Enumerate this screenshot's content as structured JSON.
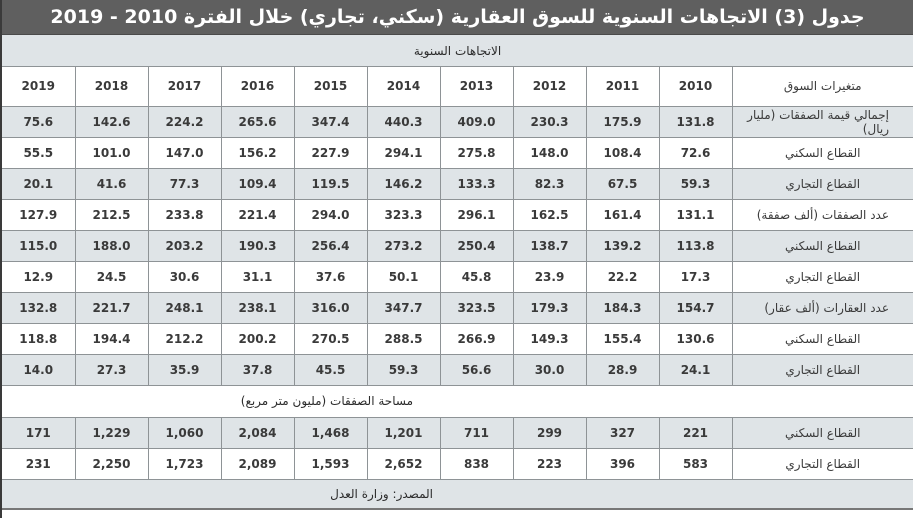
{
  "title": "جدول (3) الاتجاهات السنوية للسوق العقارية (سكني، تجاري) خلال الفترة 2010 - 2019",
  "subtitle": "الاتجاهات السنوية",
  "header": {
    "label": "متغيرات السوق",
    "years": [
      "2019",
      "2018",
      "2017",
      "2016",
      "2015",
      "2014",
      "2013",
      "2012",
      "2011",
      "2010"
    ]
  },
  "rows": [
    {
      "label": "إجمالي قيمة الصفقات (مليار ريال)",
      "values": [
        "75.6",
        "142.6",
        "224.2",
        "265.6",
        "347.4",
        "440.3",
        "409.0",
        "230.3",
        "175.9",
        "131.8"
      ]
    },
    {
      "label": "القطاع السكني",
      "values": [
        "55.5",
        "101.0",
        "147.0",
        "156.2",
        "227.9",
        "294.1",
        "275.8",
        "148.0",
        "108.4",
        "72.6"
      ]
    },
    {
      "label": "القطاع التجاري",
      "values": [
        "20.1",
        "41.6",
        "77.3",
        "109.4",
        "119.5",
        "146.2",
        "133.3",
        "82.3",
        "67.5",
        "59.3"
      ]
    },
    {
      "label": "عدد الصفقات (ألف صفقة)",
      "values": [
        "127.9",
        "212.5",
        "233.8",
        "221.4",
        "294.0",
        "323.3",
        "296.1",
        "162.5",
        "161.4",
        "131.1"
      ]
    },
    {
      "label": "القطاع السكني",
      "values": [
        "115.0",
        "188.0",
        "203.2",
        "190.3",
        "256.4",
        "273.2",
        "250.4",
        "138.7",
        "139.2",
        "113.8"
      ]
    },
    {
      "label": "القطاع التجاري",
      "values": [
        "12.9",
        "24.5",
        "30.6",
        "31.1",
        "37.6",
        "50.1",
        "45.8",
        "23.9",
        "22.2",
        "17.3"
      ]
    },
    {
      "label": "عدد العقارات (ألف عقار)",
      "values": [
        "132.8",
        "221.7",
        "248.1",
        "238.1",
        "316.0",
        "347.7",
        "323.5",
        "179.3",
        "184.3",
        "154.7"
      ]
    },
    {
      "label": "القطاع السكني",
      "values": [
        "118.8",
        "194.4",
        "212.2",
        "200.2",
        "270.5",
        "288.5",
        "266.9",
        "149.3",
        "155.4",
        "130.6"
      ]
    },
    {
      "label": "القطاع التجاري",
      "values": [
        "14.0",
        "27.3",
        "35.9",
        "37.8",
        "45.5",
        "59.3",
        "56.6",
        "30.0",
        "28.9",
        "24.1"
      ]
    }
  ],
  "area_section": {
    "label": "مساحة الصفقات (مليون متر مربع)",
    "rows": [
      {
        "label": "القطاع السكني",
        "values": [
          "171",
          "1,229",
          "1,060",
          "2,084",
          "1,468",
          "1,201",
          "711",
          "299",
          "327",
          "221"
        ]
      },
      {
        "label": "القطاع التجاري",
        "values": [
          "231",
          "2,250",
          "1,723",
          "2,089",
          "1,593",
          "2,652",
          "838",
          "223",
          "396",
          "583"
        ]
      }
    ]
  },
  "source": "المصدر: وزارة العدل",
  "colors": {
    "title_bg": "#5f5f5f",
    "row_gray": "#dfe4e7",
    "row_white": "#ffffff",
    "border": "#8e9396"
  }
}
